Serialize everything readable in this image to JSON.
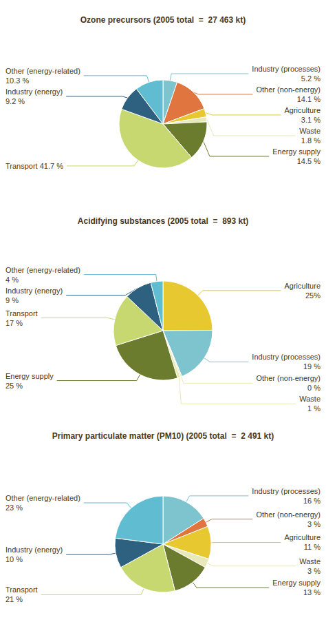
{
  "chart_data": [
    {
      "type": "pie",
      "title": "Ozone precursors (2005 total  =  27 463 kt)",
      "categories": [
        "Industry (processes)\n5.2 %",
        "Other (non-energy)\n14.1 %",
        "Agriculture\n3.1 %",
        "Waste\n1.8 %",
        "Energy supply\n14.5 %",
        "Transport 41.7 %",
        "Industry (energy)\n9.2 %",
        "Other (energy-related)\n10.3 %"
      ],
      "values": [
        5.2,
        14.1,
        3.1,
        1.8,
        14.5,
        41.7,
        9.2,
        10.3
      ],
      "colors": [
        "#7dc4cf",
        "#e07540",
        "#e8c830",
        "#e8e8b8",
        "#6b7c2e",
        "#c8d870",
        "#2e6080",
        "#60bcd0"
      ]
    },
    {
      "type": "pie",
      "title": "Acidifying substances (2005 total  =  893 kt)",
      "categories": [
        "Agriculture\n25%",
        "Industry (processes)\n19 %",
        "Other (non-energy)\n0 %",
        "Waste\n1 %",
        "Energy supply\n25 %",
        "Transport\n17 %",
        "Industry (energy)\n9 %",
        "Other (energy-related)\n4 %"
      ],
      "values": [
        25,
        19,
        0.5,
        1,
        25,
        17,
        9,
        4
      ],
      "colors": [
        "#e8c830",
        "#7dc4cf",
        "#e8e8b8",
        "#e8e8b8",
        "#6b7c2e",
        "#c8d870",
        "#2e6080",
        "#60bcd0"
      ]
    },
    {
      "type": "pie",
      "title": "Primary particulate matter (PM10) (2005 total  =  2 491 kt)",
      "categories": [
        "Industry (processes)\n16 %",
        "Other (non-energy)\n3 %",
        "Agriculture\n11 %",
        "Waste\n3 %",
        "Energy supply\n13 %",
        "Transport\n21 %",
        "Industry (energy)\n10 %",
        "Other (energy-related)\n23 %"
      ],
      "values": [
        16,
        3,
        11,
        3,
        13,
        21,
        10,
        23
      ],
      "colors": [
        "#7dc4cf",
        "#e07540",
        "#e8c830",
        "#e8e8b8",
        "#6b7c2e",
        "#c8d870",
        "#2e6080",
        "#60bcd0"
      ]
    }
  ]
}
